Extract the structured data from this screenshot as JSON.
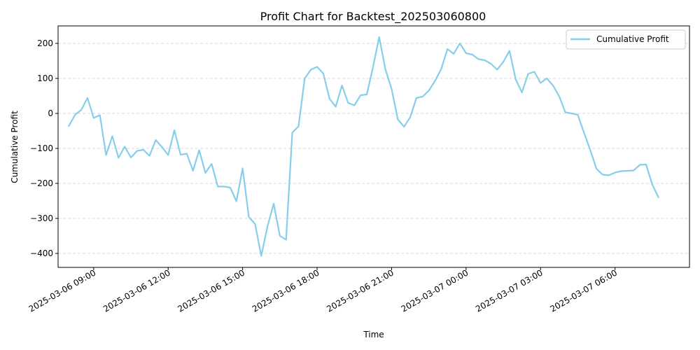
{
  "chart_data": {
    "type": "line",
    "title": "Profit Chart for Backtest_202503060800",
    "xlabel": "Time",
    "ylabel": "Cumulative Profit",
    "xlim": [
      "2025-03-06 07:34",
      "2025-03-07 09:00"
    ],
    "ylim": [
      -440,
      250
    ],
    "grid": {
      "y": true,
      "x": false
    },
    "legend": {
      "placement": "top-right"
    },
    "x_ticks": [
      {
        "value": "2025-03-06 09:00",
        "label": "2025-03-06 09:00"
      },
      {
        "value": "2025-03-06 12:00",
        "label": "2025-03-06 12:00"
      },
      {
        "value": "2025-03-06 15:00",
        "label": "2025-03-06 15:00"
      },
      {
        "value": "2025-03-06 18:00",
        "label": "2025-03-06 18:00"
      },
      {
        "value": "2025-03-06 21:00",
        "label": "2025-03-06 21:00"
      },
      {
        "value": "2025-03-07 00:00",
        "label": "2025-03-07 00:00"
      },
      {
        "value": "2025-03-07 03:00",
        "label": "2025-03-07 03:00"
      },
      {
        "value": "2025-03-07 06:00",
        "label": "2025-03-07 06:00"
      }
    ],
    "y_ticks": [
      {
        "value": 200,
        "label": "200"
      },
      {
        "value": 100,
        "label": "100"
      },
      {
        "value": 0,
        "label": "0"
      },
      {
        "value": -100,
        "label": "−100"
      },
      {
        "value": -200,
        "label": "−200"
      },
      {
        "value": -300,
        "label": "−300"
      },
      {
        "value": -400,
        "label": "−400"
      }
    ],
    "series": [
      {
        "name": "Cumulative Profit",
        "color": "#87ceeb",
        "points": [
          [
            "2025-03-06 08:00",
            -36
          ],
          [
            "2025-03-06 08:15",
            -4
          ],
          [
            "2025-03-06 08:30",
            10
          ],
          [
            "2025-03-06 08:45",
            44
          ],
          [
            "2025-03-06 09:00",
            -13
          ],
          [
            "2025-03-06 09:15",
            -5
          ],
          [
            "2025-03-06 09:30",
            -119
          ],
          [
            "2025-03-06 09:45",
            -65
          ],
          [
            "2025-03-06 10:00",
            -127
          ],
          [
            "2025-03-06 10:15",
            -95
          ],
          [
            "2025-03-06 10:30",
            -126
          ],
          [
            "2025-03-06 10:45",
            -107
          ],
          [
            "2025-03-06 11:00",
            -104
          ],
          [
            "2025-03-06 11:15",
            -121
          ],
          [
            "2025-03-06 11:30",
            -76
          ],
          [
            "2025-03-06 11:45",
            -96
          ],
          [
            "2025-03-06 12:00",
            -119
          ],
          [
            "2025-03-06 12:15",
            -48
          ],
          [
            "2025-03-06 12:30",
            -118
          ],
          [
            "2025-03-06 12:45",
            -115
          ],
          [
            "2025-03-06 13:00",
            -164
          ],
          [
            "2025-03-06 13:15",
            -105
          ],
          [
            "2025-03-06 13:30",
            -170
          ],
          [
            "2025-03-06 13:45",
            -144
          ],
          [
            "2025-03-06 14:00",
            -209
          ],
          [
            "2025-03-06 14:15",
            -209
          ],
          [
            "2025-03-06 14:30",
            -212
          ],
          [
            "2025-03-06 14:45",
            -251
          ],
          [
            "2025-03-06 15:00",
            -157
          ],
          [
            "2025-03-06 15:15",
            -296
          ],
          [
            "2025-03-06 15:30",
            -316
          ],
          [
            "2025-03-06 15:45",
            -407
          ],
          [
            "2025-03-06 16:00",
            -323
          ],
          [
            "2025-03-06 16:15",
            -258
          ],
          [
            "2025-03-06 16:30",
            -350
          ],
          [
            "2025-03-06 16:45",
            -361
          ],
          [
            "2025-03-06 17:00",
            -55
          ],
          [
            "2025-03-06 17:15",
            -37
          ],
          [
            "2025-03-06 17:30",
            100
          ],
          [
            "2025-03-06 17:45",
            125
          ],
          [
            "2025-03-06 18:00",
            133
          ],
          [
            "2025-03-06 18:15",
            114
          ],
          [
            "2025-03-06 18:30",
            42
          ],
          [
            "2025-03-06 18:45",
            19
          ],
          [
            "2025-03-06 19:00",
            80
          ],
          [
            "2025-03-06 19:15",
            30
          ],
          [
            "2025-03-06 19:30",
            23
          ],
          [
            "2025-03-06 19:45",
            52
          ],
          [
            "2025-03-06 20:00",
            54
          ],
          [
            "2025-03-06 20:15",
            132
          ],
          [
            "2025-03-06 20:30",
            218
          ],
          [
            "2025-03-06 20:45",
            126
          ],
          [
            "2025-03-06 21:00",
            70
          ],
          [
            "2025-03-06 21:15",
            -17
          ],
          [
            "2025-03-06 21:30",
            -38
          ],
          [
            "2025-03-06 21:45",
            -11
          ],
          [
            "2025-03-06 22:00",
            44
          ],
          [
            "2025-03-06 22:15",
            48
          ],
          [
            "2025-03-06 22:30",
            65
          ],
          [
            "2025-03-06 22:45",
            93
          ],
          [
            "2025-03-06 23:00",
            127
          ],
          [
            "2025-03-06 23:15",
            184
          ],
          [
            "2025-03-06 23:30",
            170
          ],
          [
            "2025-03-06 23:45",
            200
          ],
          [
            "2025-03-07 00:00",
            172
          ],
          [
            "2025-03-07 00:15",
            168
          ],
          [
            "2025-03-07 00:30",
            155
          ],
          [
            "2025-03-07 00:45",
            152
          ],
          [
            "2025-03-07 01:00",
            142
          ],
          [
            "2025-03-07 01:15",
            125
          ],
          [
            "2025-03-07 01:30",
            147
          ],
          [
            "2025-03-07 01:45",
            179
          ],
          [
            "2025-03-07 02:00",
            97
          ],
          [
            "2025-03-07 02:15",
            60
          ],
          [
            "2025-03-07 02:30",
            113
          ],
          [
            "2025-03-07 02:45",
            119
          ],
          [
            "2025-03-07 03:00",
            87
          ],
          [
            "2025-03-07 03:15",
            100
          ],
          [
            "2025-03-07 03:30",
            80
          ],
          [
            "2025-03-07 03:45",
            49
          ],
          [
            "2025-03-07 04:00",
            3
          ],
          [
            "2025-03-07 04:15",
            0
          ],
          [
            "2025-03-07 04:30",
            -4
          ],
          [
            "2025-03-07 04:45",
            -55
          ],
          [
            "2025-03-07 05:00",
            -104
          ],
          [
            "2025-03-07 05:15",
            -158
          ],
          [
            "2025-03-07 05:30",
            -175
          ],
          [
            "2025-03-07 05:45",
            -177
          ],
          [
            "2025-03-07 06:00",
            -169
          ],
          [
            "2025-03-07 06:15",
            -165
          ],
          [
            "2025-03-07 06:30",
            -164
          ],
          [
            "2025-03-07 06:45",
            -163
          ],
          [
            "2025-03-07 07:00",
            -147
          ],
          [
            "2025-03-07 07:15",
            -146
          ],
          [
            "2025-03-07 07:30",
            -203
          ],
          [
            "2025-03-07 07:45",
            -240
          ]
        ]
      }
    ]
  }
}
